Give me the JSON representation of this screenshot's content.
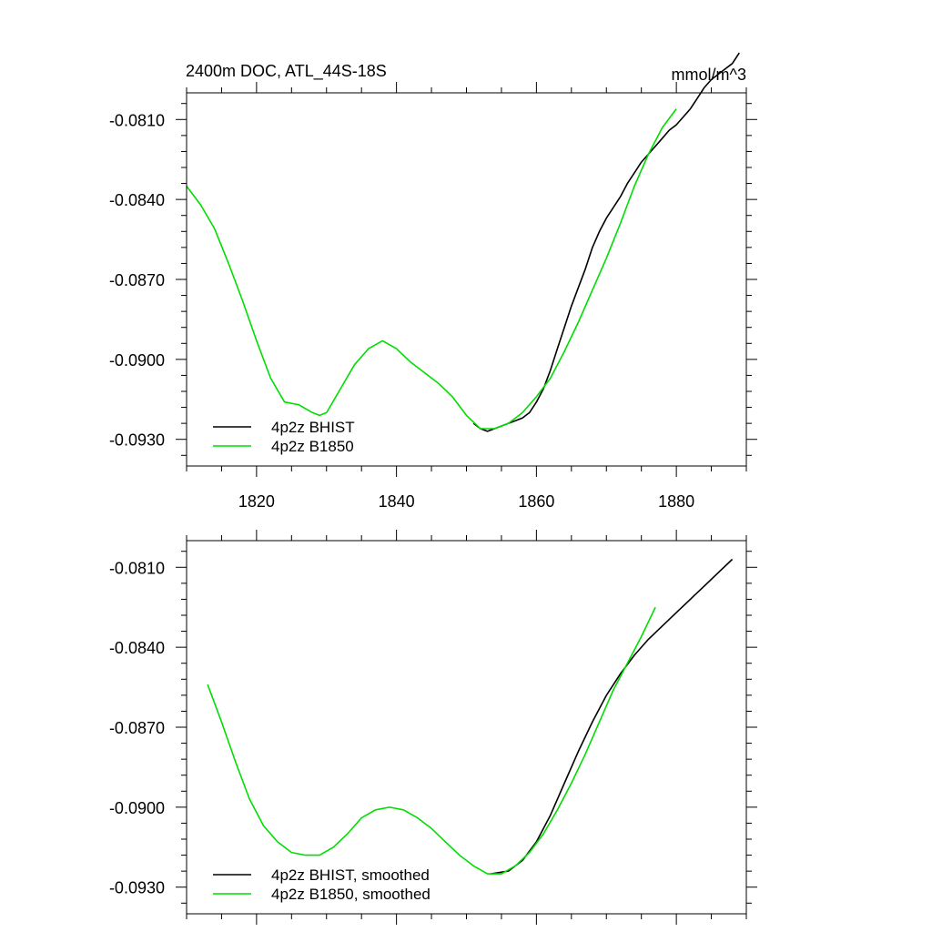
{
  "chart_data": [
    {
      "type": "line",
      "title": "2400m DOC, ATL_44S-18S",
      "units": "mmol/m^3",
      "xlim": [
        1810,
        1890
      ],
      "ylim": [
        -0.094,
        -0.08
      ],
      "x_ticks": [
        1820,
        1840,
        1860,
        1880
      ],
      "y_ticks": [
        -0.081,
        -0.084,
        -0.087,
        -0.09,
        -0.093
      ],
      "x_tick_labels": [
        "1820",
        "1840",
        "1860",
        "1880"
      ],
      "y_tick_labels": [
        "-0.0810",
        "-0.0840",
        "-0.0870",
        "-0.0900",
        "-0.0930"
      ],
      "legend_position": "bottom-left",
      "series": [
        {
          "name": "4p2z BHIST",
          "color": "#000000",
          "x": [
            1851,
            1852,
            1853,
            1854,
            1855,
            1856,
            1857,
            1858,
            1859,
            1860,
            1861,
            1862,
            1863,
            1864,
            1865,
            1866,
            1867,
            1868,
            1869,
            1870,
            1871,
            1872,
            1873,
            1874,
            1875,
            1876,
            1877,
            1878,
            1879,
            1880,
            1881,
            1882,
            1883,
            1884,
            1885,
            1886,
            1887,
            1888,
            1889
          ],
          "values": [
            -0.0924,
            -0.0926,
            -0.0927,
            -0.0926,
            -0.0925,
            -0.0924,
            -0.0923,
            -0.0922,
            -0.092,
            -0.0916,
            -0.0911,
            -0.0904,
            -0.0896,
            -0.0888,
            -0.088,
            -0.0873,
            -0.0866,
            -0.0858,
            -0.0852,
            -0.0847,
            -0.0843,
            -0.0839,
            -0.0834,
            -0.083,
            -0.0826,
            -0.0823,
            -0.082,
            -0.0817,
            -0.0814,
            -0.0812,
            -0.0809,
            -0.0806,
            -0.0802,
            -0.0798,
            -0.0795,
            -0.0793,
            -0.0791,
            -0.0789,
            -0.0785
          ]
        },
        {
          "name": "4p2z B1850",
          "color": "#00dd00",
          "x": [
            1810,
            1812,
            1814,
            1816,
            1818,
            1820,
            1822,
            1824,
            1826,
            1828,
            1829,
            1830,
            1832,
            1834,
            1836,
            1838,
            1840,
            1842,
            1844,
            1846,
            1848,
            1850,
            1852,
            1854,
            1856,
            1858,
            1860,
            1862,
            1864,
            1866,
            1868,
            1870,
            1872,
            1874,
            1876,
            1878,
            1880
          ],
          "values": [
            -0.0835,
            -0.0842,
            -0.0851,
            -0.0864,
            -0.0878,
            -0.0893,
            -0.0907,
            -0.0916,
            -0.0917,
            -0.092,
            -0.0921,
            -0.092,
            -0.0911,
            -0.0902,
            -0.0896,
            -0.0893,
            -0.0896,
            -0.0901,
            -0.0905,
            -0.0909,
            -0.0914,
            -0.0921,
            -0.0926,
            -0.0926,
            -0.0924,
            -0.092,
            -0.0914,
            -0.0907,
            -0.0897,
            -0.0886,
            -0.0874,
            -0.0862,
            -0.0849,
            -0.0835,
            -0.0823,
            -0.0813,
            -0.0806
          ]
        }
      ]
    },
    {
      "type": "line",
      "title": "",
      "units": "",
      "xlim": [
        1810,
        1890
      ],
      "ylim": [
        -0.094,
        -0.08
      ],
      "x_ticks": [
        1820,
        1840,
        1860,
        1880
      ],
      "y_ticks": [
        -0.081,
        -0.084,
        -0.087,
        -0.09,
        -0.093
      ],
      "y_tick_labels": [
        "-0.0810",
        "-0.0840",
        "-0.0870",
        "-0.0900",
        "-0.0930"
      ],
      "legend_position": "bottom-left",
      "series": [
        {
          "name": "4p2z BHIST, smoothed",
          "color": "#000000",
          "x": [
            1853.5,
            1856,
            1858,
            1860,
            1862,
            1864,
            1866,
            1868,
            1870,
            1872,
            1874,
            1876,
            1878,
            1880,
            1882,
            1884,
            1886,
            1888
          ],
          "values": [
            -0.0925,
            -0.0924,
            -0.092,
            -0.0913,
            -0.0903,
            -0.0891,
            -0.0879,
            -0.0868,
            -0.0858,
            -0.085,
            -0.0843,
            -0.0837,
            -0.0832,
            -0.0827,
            -0.0822,
            -0.0817,
            -0.0812,
            -0.0807
          ]
        },
        {
          "name": "4p2z B1850, smoothed",
          "color": "#00dd00",
          "x": [
            1813,
            1815,
            1817,
            1819,
            1821,
            1823,
            1825,
            1827,
            1829,
            1831,
            1833,
            1835,
            1837,
            1839,
            1841,
            1843,
            1845,
            1847,
            1849,
            1851,
            1853,
            1855,
            1857,
            1859,
            1861,
            1863,
            1865,
            1867,
            1869,
            1871,
            1873,
            1875,
            1877
          ],
          "values": [
            -0.0854,
            -0.0868,
            -0.0883,
            -0.0897,
            -0.0907,
            -0.0913,
            -0.0917,
            -0.0918,
            -0.0918,
            -0.0915,
            -0.091,
            -0.0904,
            -0.0901,
            -0.09,
            -0.0901,
            -0.0904,
            -0.0908,
            -0.0913,
            -0.0918,
            -0.0922,
            -0.0925,
            -0.0925,
            -0.0922,
            -0.0917,
            -0.091,
            -0.0901,
            -0.0891,
            -0.088,
            -0.0868,
            -0.0856,
            -0.0846,
            -0.0836,
            -0.0825
          ]
        }
      ]
    }
  ]
}
